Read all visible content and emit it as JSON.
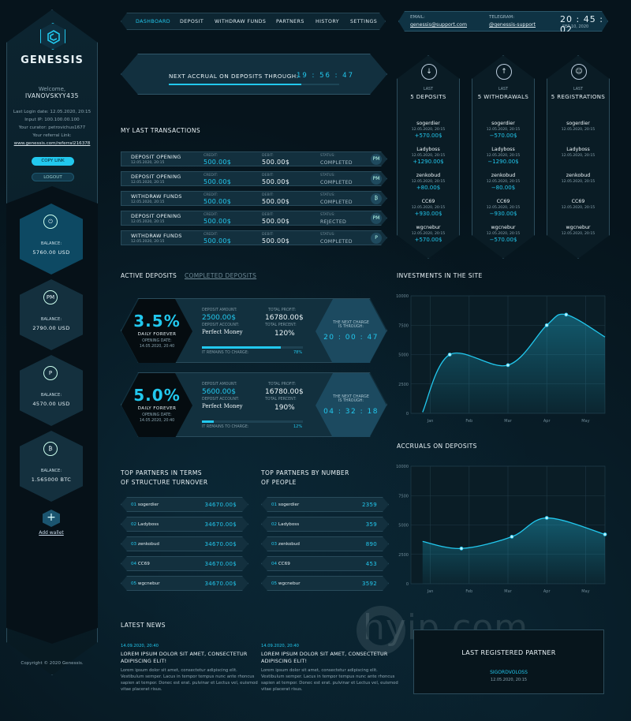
{
  "sidebar": {
    "brand": "GENESSIS",
    "welcome": "Welcome,",
    "username": "IVANOVSKYY435",
    "last_login": "Last Login date: 12.05.2020, 20:15",
    "input_ip": "Input IP: 100.100.00.100",
    "curator": "Your curator: petrovichus1677",
    "ref_label": "Your referral Link:",
    "ref_link": "www.genessis.com/referral216378",
    "copy_label": "COPY LINK",
    "logout_label": "LOGOUT",
    "wallets": [
      {
        "icon": "power-icon",
        "glyph": "⏻",
        "label": "BALANCE:",
        "amount": "5760.00 USD"
      },
      {
        "icon": "perfect-money-icon",
        "glyph": "PM",
        "label": "BALANCE:",
        "amount": "2790.00 USD"
      },
      {
        "icon": "payeer-icon",
        "glyph": "P",
        "label": "BALANCE:",
        "amount": "4570.00 USD"
      },
      {
        "icon": "bitcoin-icon",
        "glyph": "₿",
        "label": "BALANCE:",
        "amount": "1.565000 BTC"
      }
    ],
    "add_wallet": "Add wallet",
    "copyright": "Copyright © 2020 Genessis."
  },
  "nav": {
    "items": [
      "DASHBOARD",
      "DEPOSIT",
      "WITHDRAW FUNDS",
      "PARTNERS",
      "HISTORY",
      "SETTINGS"
    ],
    "active": "DASHBOARD"
  },
  "contact": {
    "email_label": "EMAIL:",
    "email": "genessis@support.com",
    "telegram_label": "TELEGRAM:",
    "telegram": "@genessis-support",
    "clock": "20 : 45 : 02",
    "date": "SEP 10, 2020"
  },
  "accrual": {
    "label": "NEXT ACCRUAL ON DEPOSITS THROUGH:",
    "time": "19 : 56 : 47",
    "progress": 0.78
  },
  "transactions": {
    "title": "MY LAST TRANSACTIONS",
    "credit_label": "CREDIT:",
    "debit_label": "DEBIT:",
    "status_label": "STATUS:",
    "rows": [
      {
        "type": "DEPOSIT OPENING",
        "date": "12.05.2020, 20:15",
        "credit": "500.00$",
        "debit": "500.00$",
        "status": "COMPLETED",
        "icon": "perfect-money-icon",
        "glyph": "PM"
      },
      {
        "type": "DEPOSIT OPENING",
        "date": "12.05.2020, 20:15",
        "credit": "500.00$",
        "debit": "500.00$",
        "status": "COMPLETED",
        "icon": "perfect-money-icon",
        "glyph": "PM"
      },
      {
        "type": "WITHDRAW FUNDS",
        "date": "12.05.2020, 20:15",
        "credit": "500.00$",
        "debit": "500.00$",
        "status": "COMPLETED",
        "icon": "bitcoin-icon",
        "glyph": "₿"
      },
      {
        "type": "DEPOSIT OPENING",
        "date": "12.05.2020, 20:15",
        "credit": "500.00$",
        "debit": "500.00$",
        "status": "REJECTED",
        "icon": "perfect-money-icon",
        "glyph": "PM"
      },
      {
        "type": "WITHDRAW FUNDS",
        "date": "12.05.2020, 20:15",
        "credit": "500.00$",
        "debit": "500.00$",
        "status": "COMPLETED",
        "icon": "payeer-icon",
        "glyph": "P"
      }
    ]
  },
  "last": [
    {
      "icon": "arrow-down-icon",
      "glyph": "↓",
      "sub": "LAST",
      "title": "5 DEPOSITS",
      "rows": [
        {
          "name": "sogerdier",
          "date": "12.05.2020, 20:15",
          "amount": "+570.00$"
        },
        {
          "name": "Ladyboss",
          "date": "12.05.2020, 20:15",
          "amount": "+1290.00$"
        },
        {
          "name": "zenkobud",
          "date": "12.05.2020, 20:15",
          "amount": "+80.00$"
        },
        {
          "name": "CC69",
          "date": "12.05.2020, 20:15",
          "amount": "+930.00$"
        },
        {
          "name": "wgcnebur",
          "date": "12.05.2020, 20:15",
          "amount": "+570.00$"
        }
      ]
    },
    {
      "icon": "arrow-up-icon",
      "glyph": "↑",
      "sub": "LAST",
      "title": "5 WITHDRAWALS",
      "rows": [
        {
          "name": "sogerdier",
          "date": "12.05.2020, 20:15",
          "amount": "−570.00$"
        },
        {
          "name": "Ladyboss",
          "date": "12.05.2020, 20:15",
          "amount": "−1290.00$"
        },
        {
          "name": "zenkobud",
          "date": "12.05.2020, 20:15",
          "amount": "−80.00$"
        },
        {
          "name": "CC69",
          "date": "12.05.2020, 20:15",
          "amount": "−930.00$"
        },
        {
          "name": "wgcnebur",
          "date": "12.05.2020, 20:15",
          "amount": "−570.00$"
        }
      ]
    },
    {
      "icon": "user-icon",
      "glyph": "☺",
      "sub": "LAST",
      "title": "5 REGISTRATIONS",
      "rows": [
        {
          "name": "sogerdier",
          "date": "12.05.2020, 20:15",
          "amount": ""
        },
        {
          "name": "Ladyboss",
          "date": "12.05.2020, 20:15",
          "amount": ""
        },
        {
          "name": "zenkobud",
          "date": "12.05.2020, 20:15",
          "amount": ""
        },
        {
          "name": "CC69",
          "date": "12.05.2020, 20:15",
          "amount": ""
        },
        {
          "name": "wgcnebur",
          "date": "12.05.2020, 20:15",
          "amount": ""
        }
      ]
    }
  ],
  "deposits": {
    "tab_active": "ACTIVE DEPOSITS",
    "tab_completed": "COMPLETED DEPOSITS",
    "items": [
      {
        "percent": "3.5%",
        "period": "DAILY FOREVER",
        "opening_label": "OPENING DATE:",
        "opening": "14.05.2020, 20:40",
        "amount_label": "DEPOSIT AMOUNT:",
        "amount": "2500.00$",
        "profit_label": "TOTAL PROFIT:",
        "profit": "16780.00$",
        "account_label": "DEPOSIT ACCOUNT:",
        "account": "Perfect Money",
        "percent_label": "TOTAL PERCENT:",
        "total_percent": "120%",
        "remain_label": "IT REMAINS TO CHARGE:",
        "remain_pct": "78%",
        "remain": 0.78,
        "change_label": "THE NEXT CHARGE IS THROUGH:",
        "change_time": "20 : 00 : 47"
      },
      {
        "percent": "5.0%",
        "period": "DAILY FOREVER",
        "opening_label": "OPENING DATE:",
        "opening": "14.05.2020, 20:40",
        "amount_label": "DEPOSIT AMOUNT:",
        "amount": "5600.00$",
        "profit_label": "TOTAL PROFIT:",
        "profit": "16780.00$",
        "account_label": "DEPOSIT ACCOUNT:",
        "account": "Perfect Money",
        "percent_label": "TOTAL PERCENT:",
        "total_percent": "190%",
        "remain_label": "IT REMAINS TO CHARGE:",
        "remain_pct": "12%",
        "remain": 0.12,
        "change_label": "THE NEXT CHARGE IS THROUGH:",
        "change_time": "04 : 32 : 18"
      }
    ]
  },
  "partners_turnover": {
    "title1": "TOP PARTNERS IN TERMS",
    "title2": "OF STRUCTURE TURNOVER",
    "rows": [
      {
        "num": "01",
        "name": "sogerdier",
        "value": "34670.00$"
      },
      {
        "num": "02",
        "name": "Ladyboss",
        "value": "34670.00$"
      },
      {
        "num": "03",
        "name": "zenkobud",
        "value": "34670.00$"
      },
      {
        "num": "04",
        "name": "CC69",
        "value": "34670.00$"
      },
      {
        "num": "05",
        "name": "wgcnebur",
        "value": "34670.00$"
      }
    ]
  },
  "partners_people": {
    "title1": "TOP PARTNERS BY NUMBER",
    "title2": "OF PEOPLE",
    "rows": [
      {
        "num": "01",
        "name": "sogerdier",
        "value": "2359"
      },
      {
        "num": "02",
        "name": "Ladyboss",
        "value": "359"
      },
      {
        "num": "03",
        "name": "zenkobud",
        "value": "890"
      },
      {
        "num": "04",
        "name": "CC69",
        "value": "453"
      },
      {
        "num": "05",
        "name": "wgcnebur",
        "value": "3592"
      }
    ]
  },
  "chart_data": [
    {
      "type": "area",
      "title": "INVESTMENTS IN THE SITE",
      "categories": [
        "Jan",
        "Feb",
        "Mar",
        "Apr",
        "May"
      ],
      "yticks": [
        "0",
        "2500",
        "5000",
        "7500",
        "10000"
      ],
      "ylim": [
        0,
        10000
      ],
      "x": [
        -0.2,
        0.5,
        2.0,
        3.0,
        3.5,
        4.5
      ],
      "values": [
        100,
        5000,
        4100,
        7500,
        8400,
        6500
      ],
      "markers": [
        1,
        2,
        3,
        4
      ],
      "grid": true,
      "color": "#22c8ee"
    },
    {
      "type": "area",
      "title": "ACCRUALS ON DEPOSITS",
      "categories": [
        "Jan",
        "Feb",
        "Mar",
        "Apr",
        "May"
      ],
      "yticks": [
        "0",
        "2500",
        "5000",
        "7500",
        "10000"
      ],
      "ylim": [
        0,
        10000
      ],
      "x": [
        -0.2,
        0.8,
        2.1,
        3.0,
        4.5
      ],
      "values": [
        3600,
        3000,
        4000,
        5600,
        4200
      ],
      "markers": [
        1,
        2,
        3,
        4
      ],
      "grid": true,
      "color": "#22c8ee"
    }
  ],
  "news": {
    "title": "LATEST NEWS",
    "items": [
      {
        "date": "14.09.2020, 20:40",
        "headline": "LOREM IPSUM DOLOR SIT AMET, CONSECTETUR ADIPISCING ELIT!",
        "body": "Lorem ipsum dolor sit amet, consectetur adipiscing elit. Vestibulum semper. Lacus in tempor tempus nunc ante rhoncus sapien at tempor. Donec est erat. pulvinar et Lectus vel, euismod vitae placerat risus."
      },
      {
        "date": "14.09.2020, 20:40",
        "headline": "LOREM IPSUM DOLOR SIT AMET, CONSECTETUR ADIPISCING ELIT!",
        "body": "Lorem ipsum dolor sit amet, consectetur adipiscing elit. Vestibulum semper. Lacus in tempor tempus nunc ante rhoncus sapien at tempor. Donec est erat. pulvinar et Lectus vel, euismod vitae placerat risus."
      }
    ]
  },
  "last_partner": {
    "title": "LAST REGISTERED PARTNER",
    "name": "SIGORDVOLOSS",
    "date": "12.05.2020, 20:15"
  },
  "watermark": "hyip.com"
}
